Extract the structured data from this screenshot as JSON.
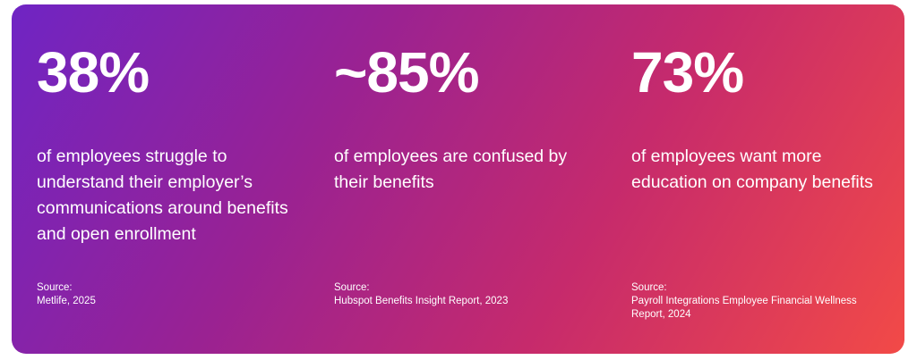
{
  "stats": [
    {
      "value": "38%",
      "description": "of employees struggle to understand their employer’s communications around benefits and open enrollment",
      "source_label": "Source:",
      "source": "Metlife, 2025"
    },
    {
      "value": "~85%",
      "description": "of employees are confused by their benefits",
      "source_label": "Source:",
      "source": "Hubspot Benefits Insight Report, 2023"
    },
    {
      "value": "73%",
      "description": "of employees want more education on company benefits",
      "source_label": "Source:",
      "source": "Payroll Integrations Employee Financial Wellness Report, 2024"
    }
  ],
  "colors": {
    "gradient_start": "#6f24c4",
    "gradient_mid1": "#9a2292",
    "gradient_mid2": "#c62a6c",
    "gradient_end": "#f24a47",
    "text": "#ffffff"
  }
}
